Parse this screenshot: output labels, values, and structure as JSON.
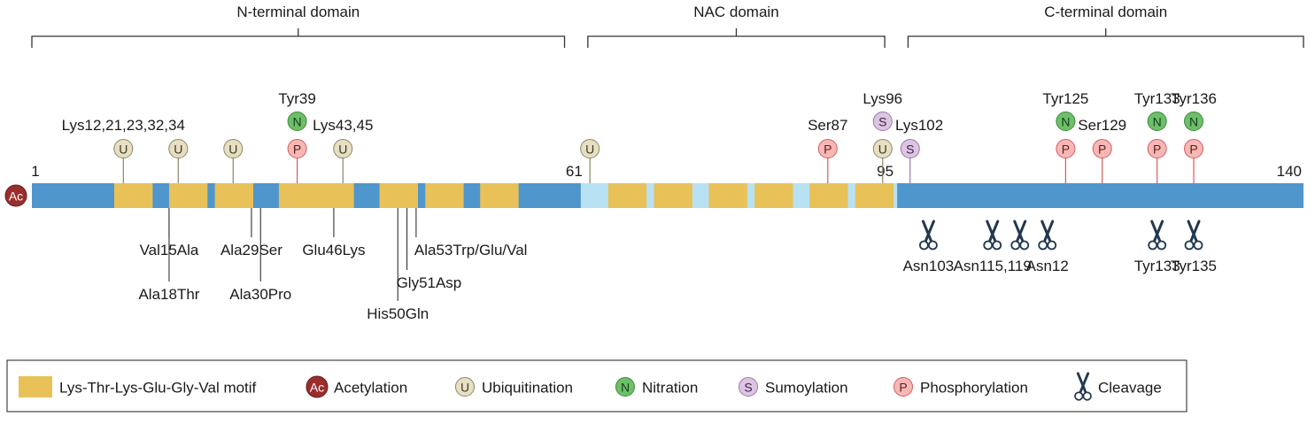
{
  "domains": [
    {
      "label": "N-terminal domain",
      "start": 1,
      "end": 60
    },
    {
      "label": "NAC domain",
      "start": 61,
      "end": 95
    },
    {
      "label": "C-terminal domain",
      "start": 96,
      "end": 140
    }
  ],
  "sequence": {
    "length": 140,
    "position_labels": [
      {
        "pos": 1,
        "text": "1"
      },
      {
        "pos": 61,
        "text": "61"
      },
      {
        "pos": 95,
        "text": "95"
      },
      {
        "pos": 140,
        "text": "140"
      }
    ],
    "motif_positions": [
      10,
      16,
      21,
      28,
      32,
      39,
      44,
      50,
      64,
      69,
      75,
      80,
      86,
      91
    ]
  },
  "modifications": [
    {
      "type": "U",
      "pos": 11,
      "level": 1
    },
    {
      "type": "U",
      "pos": 17,
      "level": 1
    },
    {
      "type": "U",
      "pos": 23,
      "level": 1
    },
    {
      "type": "P",
      "pos": 30,
      "level": 1
    },
    {
      "type": "N",
      "pos": 30,
      "level": 2
    },
    {
      "type": "U",
      "pos": 35,
      "level": 1
    },
    {
      "type": "U",
      "pos": 62,
      "level": 1
    },
    {
      "type": "P",
      "pos": 88,
      "level": 1
    },
    {
      "type": "U",
      "pos": 94,
      "level": 1
    },
    {
      "type": "S",
      "pos": 94,
      "level": 2
    },
    {
      "type": "S",
      "pos": 97,
      "level": 1
    },
    {
      "type": "P",
      "pos": 114,
      "level": 1
    },
    {
      "type": "N",
      "pos": 114,
      "level": 2
    },
    {
      "type": "P",
      "pos": 118,
      "level": 1
    },
    {
      "type": "P",
      "pos": 124,
      "level": 1
    },
    {
      "type": "N",
      "pos": 124,
      "level": 2
    },
    {
      "type": "P",
      "pos": 128,
      "level": 1
    },
    {
      "type": "N",
      "pos": 128,
      "level": 2
    }
  ],
  "site_labels": [
    {
      "text": "Lys12,21,23,32,34",
      "pos": 11,
      "level": 1
    },
    {
      "text": "Tyr39",
      "pos": 30,
      "level": 2
    },
    {
      "text": "Lys43,45",
      "pos": 35,
      "level": 1
    },
    {
      "text": "Ser87",
      "pos": 88,
      "level": 1
    },
    {
      "text": "Lys96",
      "pos": 94,
      "level": 2
    },
    {
      "text": "Lys102",
      "pos": 98,
      "level": 1
    },
    {
      "text": "Tyr125",
      "pos": 114,
      "level": 2
    },
    {
      "text": "Ser129",
      "pos": 118,
      "level": 1
    },
    {
      "text": "Tyr133",
      "pos": 124,
      "level": 2
    },
    {
      "text": "Tyr136",
      "pos": 128,
      "level": 2
    }
  ],
  "mutations": [
    {
      "text": "Val15Ala",
      "pos": 16,
      "depth": 1
    },
    {
      "text": "Ala18Thr",
      "pos": 16,
      "depth": 3
    },
    {
      "text": "Ala29Ser",
      "pos": 25,
      "depth": 1
    },
    {
      "text": "Ala30Pro",
      "pos": 26,
      "depth": 3
    },
    {
      "text": "Glu46Lys",
      "pos": 34,
      "depth": 1
    },
    {
      "text": "His50Gln",
      "pos": 41,
      "depth": 4
    },
    {
      "text": "Gly51Asp",
      "pos": 42,
      "depth": 2
    },
    {
      "text": "Ala53Trp/Glu/Val",
      "pos": 43,
      "depth": 1
    }
  ],
  "cleavage_sites": [
    {
      "pos": 99,
      "label": "Asn103"
    },
    {
      "pos": 106,
      "label": "Asn115,119"
    },
    {
      "pos": 109,
      "label": ""
    },
    {
      "pos": 112,
      "label": "Asn12"
    },
    {
      "pos": 124,
      "label": "Tyr133"
    },
    {
      "pos": 128,
      "label": "Tyr135"
    }
  ],
  "ac_badge": {
    "text": "Ac"
  },
  "legend": [
    {
      "kind": "motif",
      "text": "Lys-Thr-Lys-Glu-Gly-Val motif"
    },
    {
      "kind": "badge",
      "type": "Ac",
      "text": "Acetylation"
    },
    {
      "kind": "badge",
      "type": "U",
      "text": "Ubiquitination"
    },
    {
      "kind": "badge",
      "type": "N",
      "text": "Nitration"
    },
    {
      "kind": "badge",
      "type": "S",
      "text": "Sumoylation"
    },
    {
      "kind": "badge",
      "type": "P",
      "text": "Phosphorylation"
    },
    {
      "kind": "scissors",
      "text": "Cleavage"
    }
  ],
  "colors": {
    "bar_blue": "#4f96cc",
    "nac_light": "#b9e1f4",
    "motif": "#e8c158",
    "U": {
      "fill": "#e6dfc2",
      "stroke": "#8d8766",
      "text": "#3d3a2a"
    },
    "P": {
      "fill": "#f7b8b5",
      "stroke": "#d65b5b",
      "text": "#5c1d1d"
    },
    "N": {
      "fill": "#6dbf6a",
      "stroke": "#3f8a3c",
      "text": "#15401a"
    },
    "S": {
      "fill": "#ddc4e2",
      "stroke": "#9a78a6",
      "text": "#3c2346"
    },
    "Ac": {
      "fill": "#9a2d2d",
      "stroke": "#6e1b1b",
      "text": "#ffffff"
    },
    "scissors": "#22384f"
  }
}
